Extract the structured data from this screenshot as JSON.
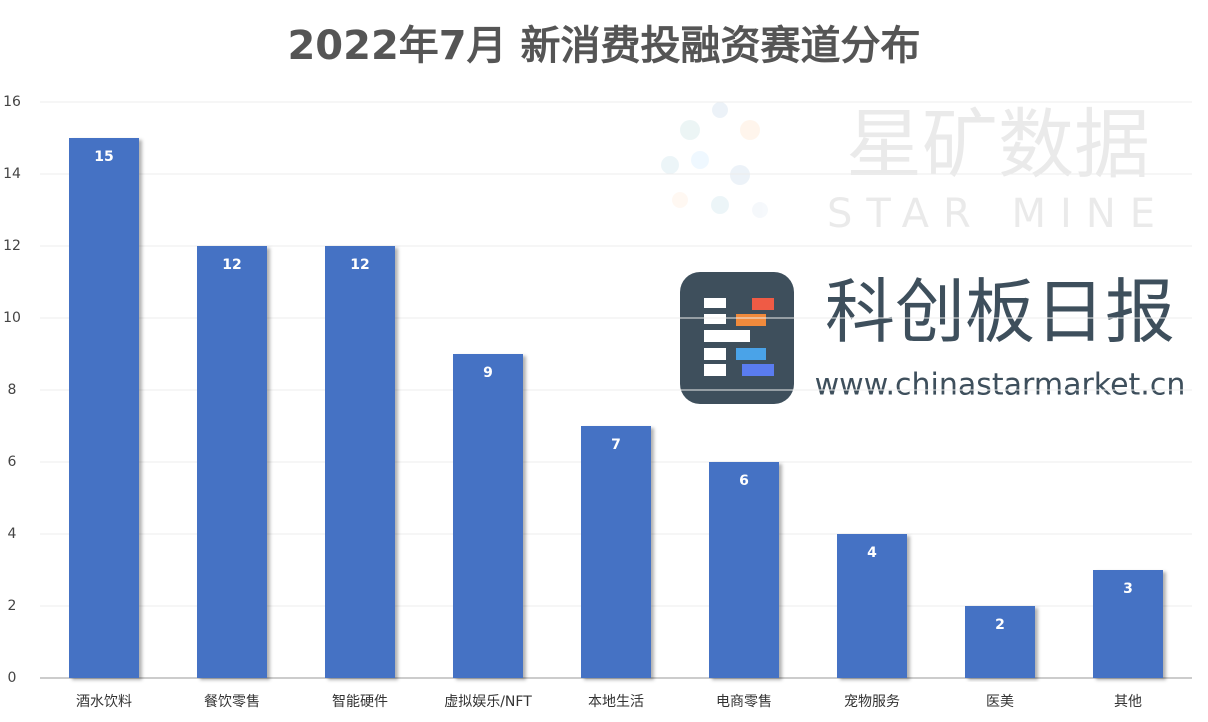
{
  "chart_data": {
    "type": "bar",
    "title": "2022年7月 新消费投融资赛道分布",
    "categories": [
      "酒水饮料",
      "餐饮零售",
      "智能硬件",
      "虚拟娱乐/NFT",
      "本地生活",
      "电商零售",
      "宠物服务",
      "医美",
      "其他"
    ],
    "values": [
      15,
      12,
      12,
      9,
      7,
      6,
      4,
      2,
      3
    ],
    "color": "#4472c4",
    "ylim": [
      0,
      16
    ],
    "yticks": [
      0,
      2,
      4,
      6,
      8,
      10,
      12,
      14,
      16
    ],
    "grid": true,
    "annotations": [
      "星矿数据",
      "STAR MINE",
      "科创板日报",
      "www.chinastarmarket.cn"
    ]
  }
}
